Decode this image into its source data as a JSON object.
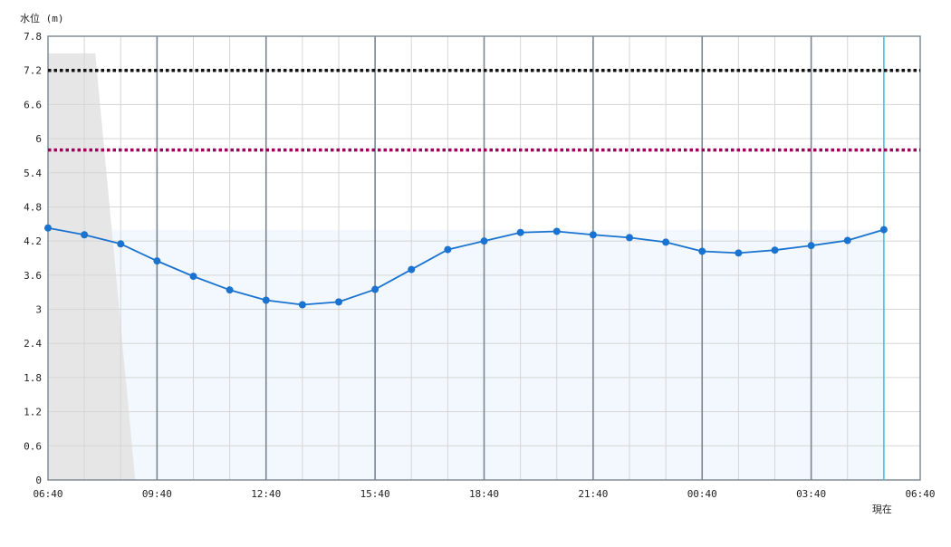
{
  "chart_data": {
    "type": "line",
    "ylabel": "水位 (m)",
    "now_label": "現在",
    "ylim": [
      0,
      7.8
    ],
    "y_ticks": [
      "0",
      "0.6",
      "1.2",
      "1.8",
      "2.4",
      "3",
      "3.6",
      "4.2",
      "4.8",
      "5.4",
      "6",
      "6.6",
      "7.2",
      "7.8"
    ],
    "x_ticks": [
      "06:40",
      "09:40",
      "12:40",
      "15:40",
      "18:40",
      "21:40",
      "00:40",
      "03:40",
      "06:40"
    ],
    "x_range_hours": [
      0,
      24
    ],
    "now_hours": 23,
    "reference_lines": [
      {
        "value": 7.2,
        "color": "#111111",
        "style": "dotted"
      },
      {
        "value": 5.8,
        "color": "#a0005a",
        "style": "dotted"
      }
    ],
    "series": [
      {
        "color": "#1a73d0",
        "x": [
          0,
          1,
          2,
          3,
          4,
          5,
          6,
          7,
          8,
          9,
          10,
          11,
          12,
          13,
          14,
          15,
          16,
          17,
          18,
          19,
          20,
          21,
          22,
          23
        ],
        "values": [
          4.43,
          4.31,
          4.15,
          3.85,
          3.58,
          3.34,
          3.16,
          3.08,
          3.13,
          3.35,
          3.7,
          4.05,
          4.2,
          4.35,
          4.37,
          4.31,
          4.26,
          4.18,
          4.02,
          3.99,
          4.04,
          4.12,
          4.21,
          4.4
        ]
      }
    ],
    "grey_area": {
      "color": "#e6e6e6",
      "top": 7.5
    },
    "blue_area": {
      "color": "#f2f8fd",
      "top": 4.4
    }
  }
}
